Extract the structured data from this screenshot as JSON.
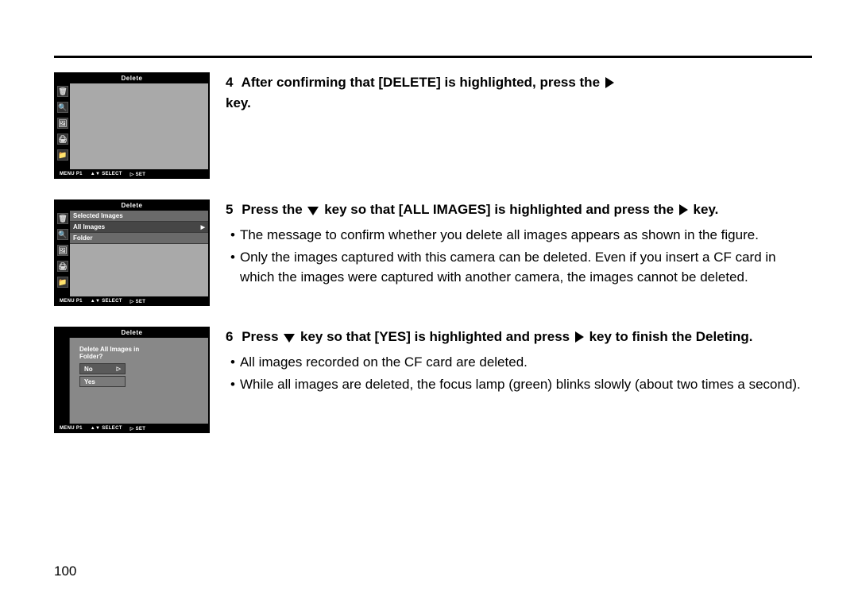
{
  "page_number": "100",
  "step4": {
    "num": "4",
    "heading_a": "After confirming that [DELETE] is highlighted, press the",
    "heading_b": "key.",
    "cam_title": "Delete",
    "footer": {
      "a": "MENU P1",
      "b": "SELECT",
      "c": "SET"
    }
  },
  "step5": {
    "num": "5",
    "heading_a": "Press the",
    "heading_b": "key so that [ALL IMAGES] is highlighted and press the",
    "heading_c": "key.",
    "bullets": [
      "The message to confirm whether you delete all images appears as shown in the figure.",
      "Only the images captured with this camera can be deleted. Even if you insert a CF card in which the images were captured with another camera, the images cannot be deleted."
    ],
    "cam_title": "Delete",
    "menu": {
      "items": [
        "Selected Images",
        "All Images",
        "Folder"
      ],
      "selected_index": 1
    },
    "footer": {
      "a": "MENU P1",
      "b": "SELECT",
      "c": "SET"
    }
  },
  "step6": {
    "num": "6",
    "heading_a": "Press",
    "heading_b": "key so that [YES] is highlighted and press",
    "heading_c": "key to finish the Deleting.",
    "bullets": [
      "All images recorded on the CF card are deleted.",
      "While all images are deleted, the focus lamp (green) blinks slowly (about two times a second)."
    ],
    "cam_title": "Delete",
    "confirm": {
      "question": "Delete All Images in Folder?",
      "opts": [
        "No",
        "Yes"
      ],
      "selected_index": 0
    },
    "footer": {
      "a": "MENU P1",
      "b": "SELECT",
      "c": "SET"
    }
  },
  "sidebar_icons": [
    "🗑",
    "🔍",
    "🖼",
    "🖨",
    "📁"
  ]
}
